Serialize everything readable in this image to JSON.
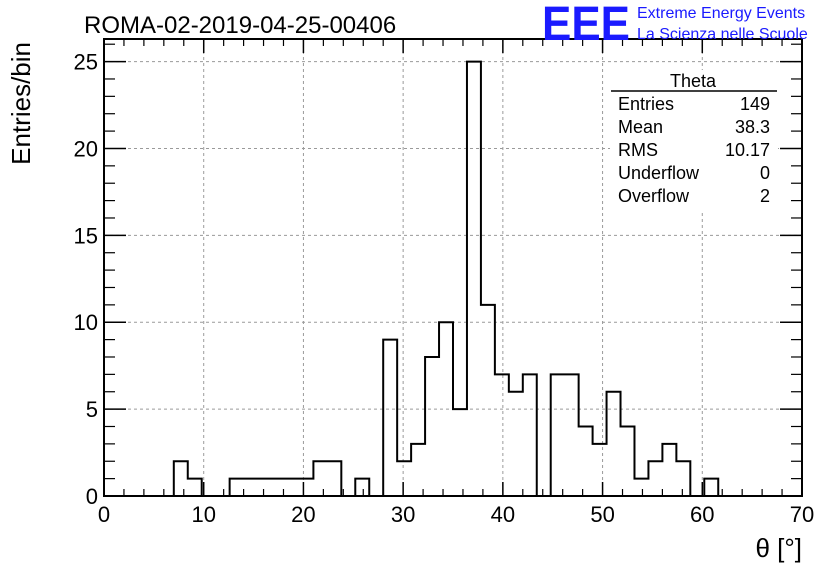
{
  "title": "ROMA-02-2019-04-25-00406",
  "logo": {
    "mark": "EEE",
    "line1": "Extreme Energy Events",
    "line2": "La Scienza nelle Scuole",
    "color": "#1a1aff"
  },
  "stats": {
    "name": "Theta",
    "rows": [
      {
        "label": "Entries",
        "value": "149"
      },
      {
        "label": "Mean",
        "value": "38.3"
      },
      {
        "label": "RMS",
        "value": "10.17"
      },
      {
        "label": "Underflow",
        "value": "0"
      },
      {
        "label": "Overflow",
        "value": "2"
      }
    ]
  },
  "chart_data": {
    "type": "histogram",
    "title": "ROMA-02-2019-04-25-00406",
    "xlabel": "θ [°]",
    "ylabel": "Entries/bin",
    "xlim": [
      0,
      70
    ],
    "ylim": [
      0,
      26.3
    ],
    "bin_width": 1.4,
    "bin_start": 0,
    "grid": true,
    "xticks": [
      "0",
      "10",
      "20",
      "30",
      "40",
      "50",
      "60",
      "70"
    ],
    "yticks": [
      "0",
      "5",
      "10",
      "15",
      "20",
      "25"
    ],
    "values": [
      0,
      0,
      0,
      0,
      0,
      2,
      1,
      0,
      0,
      1,
      1,
      1,
      1,
      1,
      1,
      2,
      2,
      0,
      1,
      0,
      9,
      2,
      3,
      8,
      10,
      5,
      25,
      11,
      7,
      6,
      7,
      0,
      7,
      7,
      4,
      3,
      6,
      4,
      1,
      2,
      3,
      2,
      0,
      1,
      0,
      0,
      0,
      0,
      0,
      0
    ]
  }
}
